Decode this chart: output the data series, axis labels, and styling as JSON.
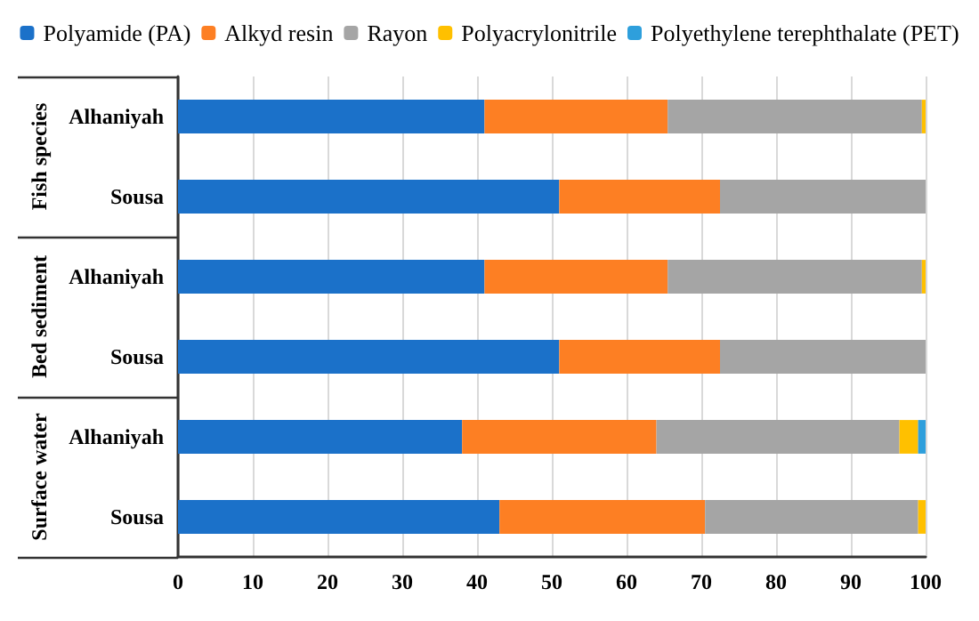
{
  "chart_data": {
    "type": "bar",
    "orientation": "horizontal",
    "stacked": true,
    "categories": [
      "Alhaniyah",
      "Sousa",
      "Alhaniyah",
      "Sousa",
      "Alhaniyah",
      "Sousa"
    ],
    "annotations": [
      "Fish species",
      "Bed sediment",
      "Surface water"
    ],
    "series": [
      {
        "name": "Polyamide (PA)",
        "color": "#1b71c9",
        "values": [
          41,
          51,
          41,
          51,
          38,
          43
        ]
      },
      {
        "name": "Alkyd resin",
        "color": "#fd7f23",
        "values": [
          24.5,
          21.5,
          24.5,
          21.5,
          26,
          27.5
        ]
      },
      {
        "name": "Rayon",
        "color": "#a5a5a5",
        "values": [
          34,
          27.5,
          34,
          27.5,
          32.5,
          28.5
        ]
      },
      {
        "name": "Polyacrylonitrile",
        "color": "#ffc000",
        "values": [
          0.5,
          null,
          0.5,
          null,
          2.5,
          1
        ]
      },
      {
        "name": "Polyethylene terephthalate (PET)",
        "color": "#2e9fdc",
        "values": [
          null,
          null,
          null,
          null,
          1,
          null
        ]
      }
    ],
    "xlim": [
      0,
      100
    ],
    "xticks": [
      0,
      10,
      20,
      30,
      40,
      50,
      60,
      70,
      80,
      90,
      100
    ],
    "grid": "x",
    "legend": "top"
  }
}
